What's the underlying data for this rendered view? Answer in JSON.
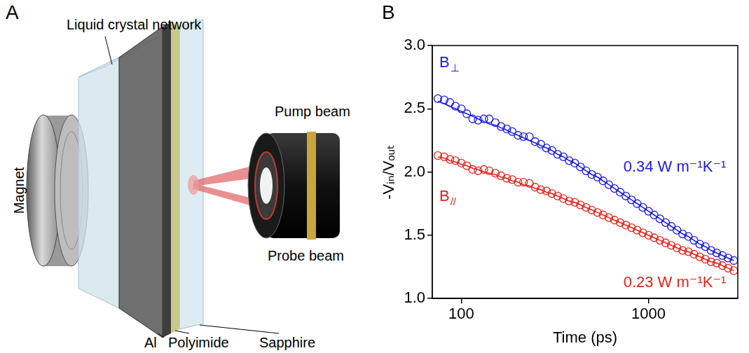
{
  "panel_labels": [
    "A",
    "B"
  ],
  "diagram": {
    "labels": {
      "lcn": "Liquid crystal network",
      "magnet": "Magnet",
      "pump": "Pump beam",
      "probe": "Probe beam",
      "al": "Al",
      "polyimide": "Polyimide",
      "sapphire": "Sapphire"
    }
  },
  "chart_data": {
    "type": "scatter",
    "x_label": "Time (ps)",
    "y_label": "-Vᵢₙ/Vₒᵤₜ",
    "log": "x",
    "grid": false,
    "xlim": [
      70,
      3000
    ],
    "xticks": [
      100,
      1000
    ],
    "ylim": [
      1,
      3
    ],
    "yticks": [
      {
        "value": 1,
        "label": "1.0"
      },
      {
        "value": 1.5,
        "label": "1.5"
      },
      {
        "value": 2,
        "label": "2.0"
      },
      {
        "value": 2.5,
        "label": "2.5"
      },
      {
        "value": 3,
        "label": "3.0"
      }
    ],
    "x": [
      75,
      81,
      87,
      93,
      100,
      107,
      115,
      123,
      132,
      141,
      152,
      163,
      175,
      187,
      201,
      215,
      231,
      248,
      266,
      285,
      305,
      327,
      351,
      377,
      404,
      433,
      464,
      498,
      534,
      572,
      614,
      658,
      706,
      757,
      812,
      870,
      933,
      1001,
      1073,
      1151,
      1234,
      1324,
      1420,
      1522,
      1633,
      1751,
      1878,
      2014,
      2159,
      2316,
      2483,
      2663,
      2856
    ],
    "series": [
      {
        "name": "B⊥",
        "color": "#1a1ae6",
        "marker": "circle",
        "annotation": "0.34 W m⁻¹K⁻¹",
        "values": [
          2.58,
          2.57,
          2.55,
          2.52,
          2.5,
          2.46,
          2.42,
          2.41,
          2.42,
          2.42,
          2.39,
          2.36,
          2.34,
          2.32,
          2.29,
          2.28,
          2.28,
          2.24,
          2.22,
          2.19,
          2.17,
          2.14,
          2.12,
          2.09,
          2.07,
          2.04,
          2.01,
          1.98,
          1.96,
          1.93,
          1.9,
          1.87,
          1.84,
          1.81,
          1.78,
          1.75,
          1.72,
          1.69,
          1.66,
          1.63,
          1.6,
          1.57,
          1.54,
          1.51,
          1.49,
          1.46,
          1.43,
          1.41,
          1.38,
          1.36,
          1.34,
          1.32,
          1.3
        ],
        "fit": [
          2.56,
          2.54,
          2.52,
          2.5,
          2.48,
          2.46,
          2.44,
          2.42,
          2.4,
          2.38,
          2.37,
          2.35,
          2.33,
          2.31,
          2.29,
          2.27,
          2.25,
          2.23,
          2.21,
          2.19,
          2.17,
          2.14,
          2.12,
          2.09,
          2.07,
          2.04,
          2.01,
          1.98,
          1.96,
          1.93,
          1.9,
          1.87,
          1.84,
          1.81,
          1.78,
          1.75,
          1.72,
          1.69,
          1.66,
          1.63,
          1.6,
          1.57,
          1.54,
          1.51,
          1.49,
          1.46,
          1.43,
          1.41,
          1.38,
          1.36,
          1.34,
          1.32,
          1.3
        ]
      },
      {
        "name": "B//",
        "color": "#e8231a",
        "marker": "circle",
        "annotation": "0.23 W m⁻¹K⁻¹",
        "values": [
          2.13,
          2.12,
          2.1,
          2.09,
          2.07,
          2.05,
          2.02,
          2.01,
          2.02,
          2.01,
          1.99,
          1.97,
          1.95,
          1.94,
          1.92,
          1.92,
          1.91,
          1.88,
          1.86,
          1.85,
          1.83,
          1.81,
          1.79,
          1.77,
          1.76,
          1.74,
          1.72,
          1.7,
          1.68,
          1.66,
          1.64,
          1.62,
          1.6,
          1.58,
          1.56,
          1.54,
          1.52,
          1.5,
          1.48,
          1.46,
          1.44,
          1.42,
          1.4,
          1.38,
          1.37,
          1.35,
          1.33,
          1.31,
          1.29,
          1.28,
          1.26,
          1.24,
          1.22
        ],
        "fit": [
          2.12,
          2.11,
          2.09,
          2.08,
          2.06,
          2.05,
          2.03,
          2.02,
          2.0,
          1.99,
          1.98,
          1.96,
          1.95,
          1.93,
          1.92,
          1.9,
          1.89,
          1.87,
          1.86,
          1.84,
          1.83,
          1.81,
          1.79,
          1.77,
          1.76,
          1.74,
          1.72,
          1.7,
          1.68,
          1.66,
          1.64,
          1.62,
          1.6,
          1.58,
          1.56,
          1.54,
          1.52,
          1.5,
          1.48,
          1.46,
          1.44,
          1.42,
          1.4,
          1.38,
          1.37,
          1.35,
          1.33,
          1.31,
          1.29,
          1.28,
          1.26,
          1.24,
          1.22
        ]
      }
    ]
  }
}
